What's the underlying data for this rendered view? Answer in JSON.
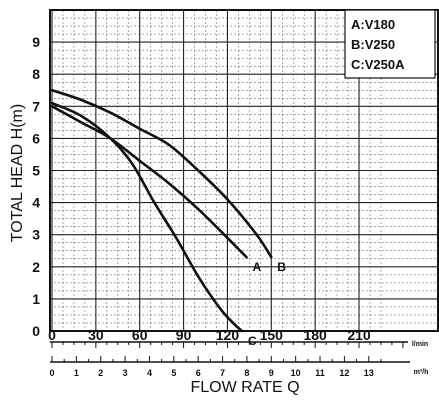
{
  "chart_data": {
    "type": "line",
    "ylabel": "TOTAL HEAD H(m)",
    "xlabel": "FLOW RATE Q",
    "ylim": [
      0,
      10
    ],
    "xlim": [
      0,
      228
    ],
    "grid": true,
    "legend_placement": "top-right",
    "y_ticks": [
      0,
      1,
      2,
      3,
      4,
      5,
      6,
      7,
      8,
      9
    ],
    "x_ticks_lpm": [
      0,
      30,
      60,
      90,
      120,
      150,
      180,
      210
    ],
    "x_unit_lpm": "l/min",
    "x_ticks_m3h": [
      0,
      1,
      2,
      3,
      4,
      5,
      6,
      7,
      8,
      9,
      10,
      11,
      12,
      13
    ],
    "x_unit_m3h": "m³/h",
    "legend": [
      "A:V180",
      "B:V250",
      "C:V250A"
    ],
    "series": [
      {
        "name": "A",
        "label": "A",
        "x": [
          0,
          20,
          40,
          60,
          80,
          100,
          120,
          133
        ],
        "y": [
          7.0,
          6.5,
          6.0,
          5.3,
          4.6,
          3.8,
          2.9,
          2.3
        ]
      },
      {
        "name": "B",
        "label": "B",
        "x": [
          0,
          20,
          40,
          60,
          80,
          100,
          120,
          140,
          150
        ],
        "y": [
          7.5,
          7.2,
          6.8,
          6.3,
          5.8,
          5.0,
          4.1,
          3.0,
          2.3
        ]
      },
      {
        "name": "C",
        "label": "C",
        "x": [
          0,
          20,
          40,
          55,
          70,
          85,
          100,
          115,
          125,
          130
        ],
        "y": [
          7.1,
          6.7,
          6.0,
          5.2,
          4.0,
          2.9,
          1.7,
          0.7,
          0.2,
          0
        ]
      }
    ]
  }
}
